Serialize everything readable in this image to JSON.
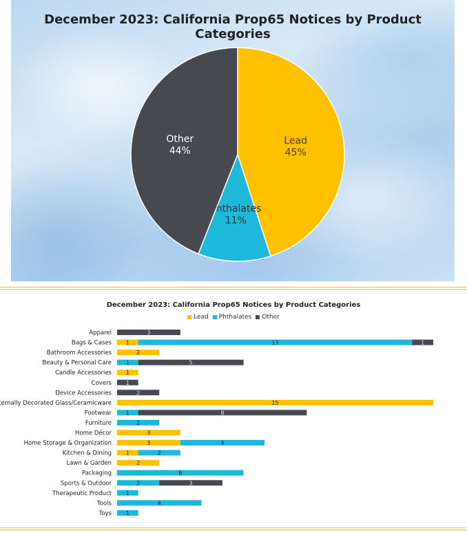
{
  "chart_data": [
    {
      "type": "pie",
      "title": "December 2023: California Prop65 Notices by Product Categories",
      "slices": [
        {
          "name": "Lead",
          "value": 45,
          "label": "45%",
          "color": "#FFC000",
          "text_color": "#444444"
        },
        {
          "name": "Phthalates",
          "value": 11,
          "label": "11%",
          "color": "#1DB8DA",
          "text_color": "#333333"
        },
        {
          "name": "Other",
          "value": 44,
          "label": "44%",
          "color": "#464A50",
          "text_color": "#FFFFFF"
        }
      ]
    },
    {
      "type": "bar",
      "orientation": "horizontal",
      "stacked": true,
      "title": "December 2023: California Prop65 Notices by Product Categories",
      "legend_position": "top",
      "categories": [
        "Apparel",
        "Bags & Cases",
        "Bathroom Accessories",
        "Beauty & Personal Care",
        "Candle Accessories",
        "Covers",
        "Device Accessories",
        "Externally Decorated Glass/Ceramicware",
        "Footwear",
        "Furniture",
        "Home Décor",
        "Home Storage & Organization",
        "Kitchen & Dining",
        "Lawn & Garden",
        "Packaging",
        "Sports & Outdoor",
        "Therapeutic Product",
        "Tools",
        "Toys"
      ],
      "series": [
        {
          "name": "Lead",
          "color": "#FFC000",
          "values": [
            0,
            1,
            2,
            0,
            1,
            0,
            0,
            15,
            0,
            0,
            3,
            3,
            1,
            2,
            0,
            0,
            0,
            0,
            0
          ]
        },
        {
          "name": "Phthalates",
          "color": "#1DB8DA",
          "values": [
            0,
            13,
            0,
            1,
            0,
            0,
            0,
            0,
            1,
            2,
            0,
            4,
            2,
            0,
            6,
            2,
            1,
            4,
            1
          ]
        },
        {
          "name": "Other",
          "color": "#464A50",
          "values": [
            3,
            1,
            0,
            5,
            0,
            1,
            2,
            0,
            8,
            0,
            0,
            0,
            0,
            0,
            0,
            3,
            0,
            0,
            0
          ]
        }
      ]
    }
  ]
}
